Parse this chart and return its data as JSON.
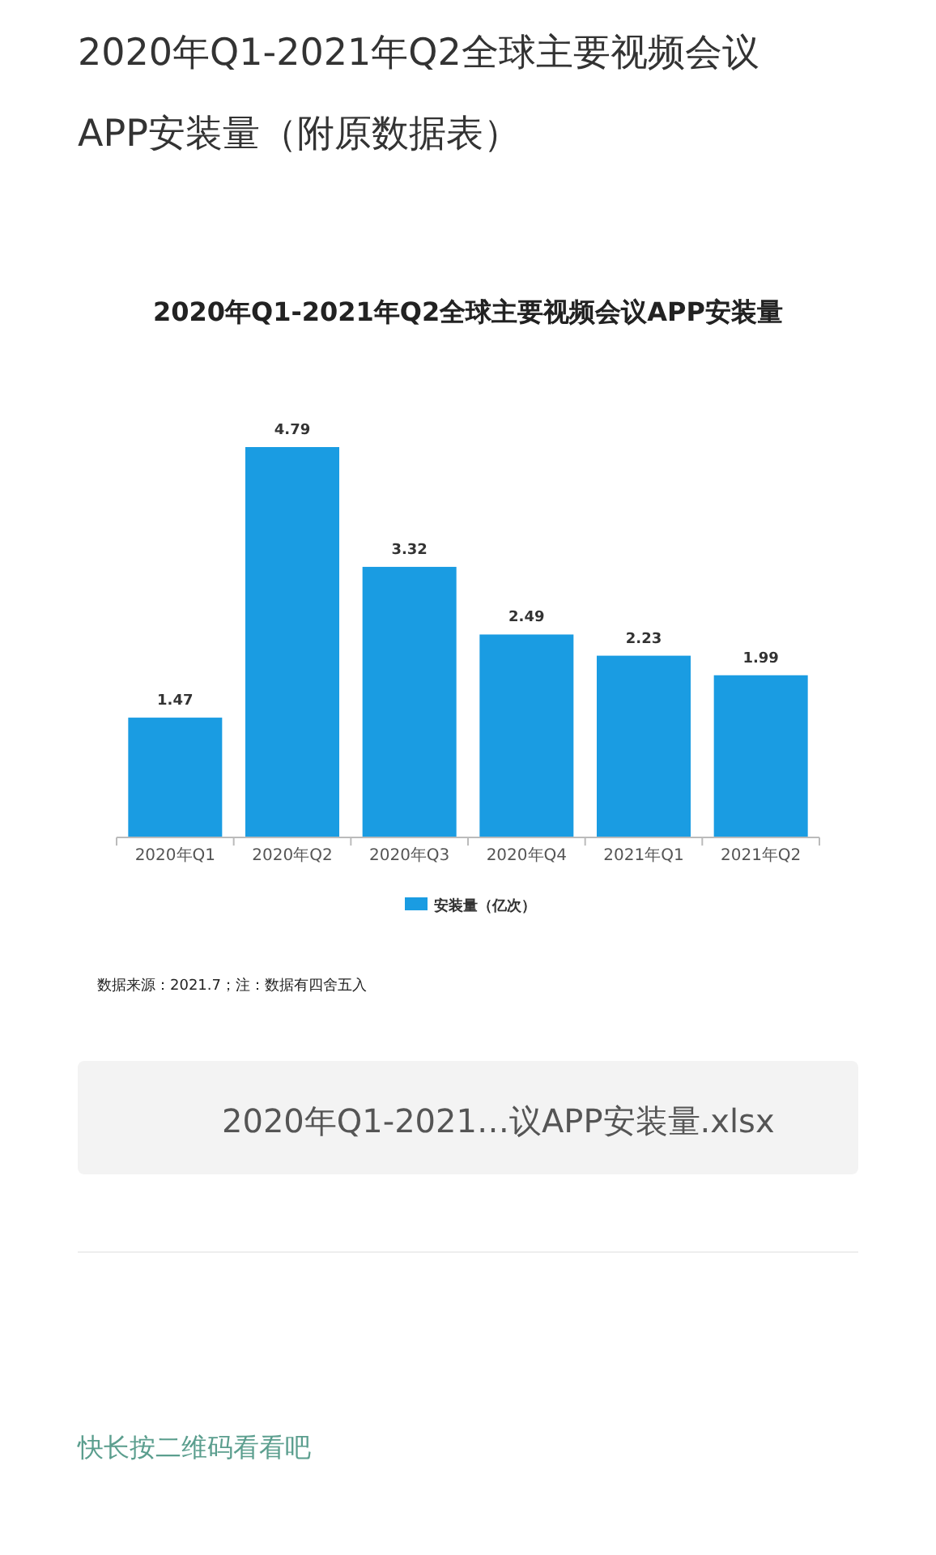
{
  "chart_data": {
    "type": "bar",
    "title": "2020年Q1-2021年Q2全球主要视频会议APP安装量（附原数据表）",
    "subtitle": "2020年Q1-2021年Q2全球主要视频会议APP安装量",
    "categories": [
      "2020年Q1",
      "2020年Q2",
      "2020年Q3",
      "2020年Q4",
      "2021年Q1",
      "2021年Q2"
    ],
    "series": [
      {
        "name": "安装量（亿次）",
        "color": "#1a9ce2",
        "values": [
          1.47,
          4.79,
          3.32,
          2.49,
          2.23,
          1.99
        ]
      }
    ],
    "data_labels": true,
    "legend": "bottom",
    "annotations": [
      "数据来源：2021.7；注：数据有四舍五入",
      "2020年Q1-2021…议APP安装量.xlsx",
      "快长按二维码看看吧"
    ]
  }
}
